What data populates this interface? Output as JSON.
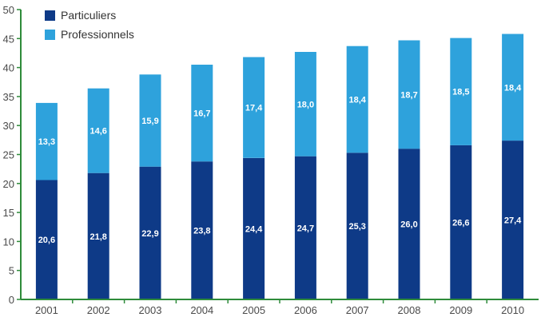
{
  "chart_data": {
    "type": "bar",
    "stacked": true,
    "categories": [
      "2001",
      "2002",
      "2003",
      "2004",
      "2005",
      "2006",
      "2007",
      "2008",
      "2009",
      "2010"
    ],
    "series": [
      {
        "name": "Particuliers",
        "color": "#0e3a87",
        "values": [
          20.6,
          21.8,
          22.9,
          23.8,
          24.4,
          24.7,
          25.3,
          26.0,
          26.6,
          27.4
        ],
        "labels": [
          "20,6",
          "21,8",
          "22,9",
          "23,8",
          "24,4",
          "24,7",
          "25,3",
          "26,0",
          "26,6",
          "27,4"
        ]
      },
      {
        "name": "Professionnels",
        "color": "#2ea2dc",
        "values": [
          13.3,
          14.6,
          15.9,
          16.7,
          17.4,
          18.0,
          18.4,
          18.7,
          18.5,
          18.4
        ],
        "labels": [
          "13,3",
          "14,6",
          "15,9",
          "16,7",
          "17,4",
          "18,0",
          "18,4",
          "18,7",
          "18,5",
          "18,4"
        ]
      }
    ],
    "ylim": [
      0,
      50
    ],
    "yticks": [
      0,
      5,
      10,
      15,
      20,
      25,
      30,
      35,
      40,
      45,
      50
    ],
    "axis_color": "#2e8b3a",
    "legend": "top-left",
    "grid": false
  }
}
